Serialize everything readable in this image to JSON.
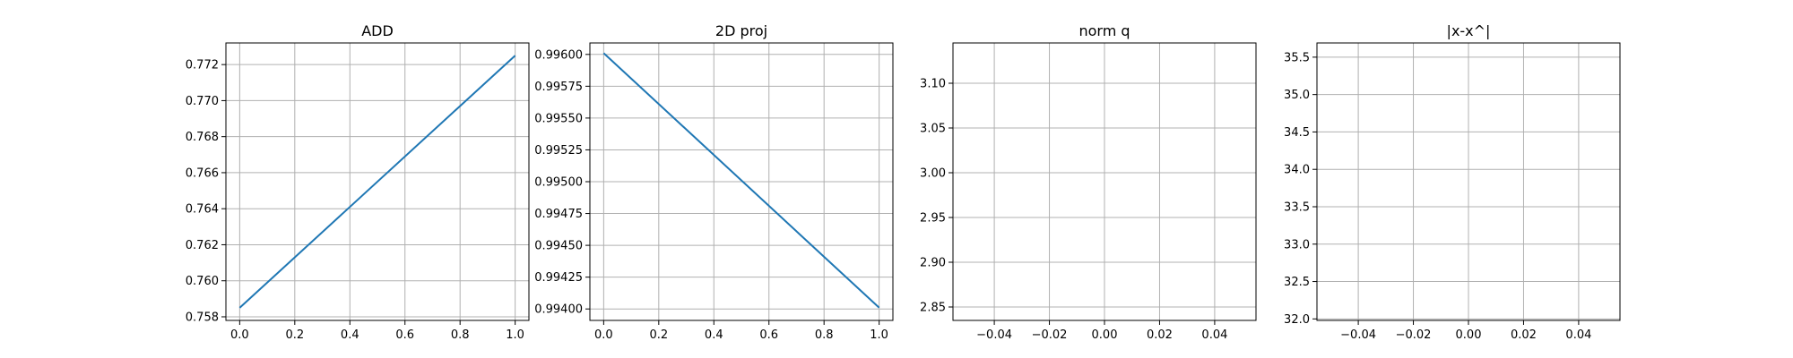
{
  "chart_data": [
    {
      "type": "line",
      "title": "ADD",
      "xlabel": "",
      "ylabel": "",
      "grid": true,
      "xlim": [
        -0.05,
        1.05
      ],
      "ylim": [
        0.7578,
        0.7732
      ],
      "x_ticks": [
        0.0,
        0.2,
        0.4,
        0.6,
        0.8,
        1.0
      ],
      "x_tick_labels": [
        "0.0",
        "0.2",
        "0.4",
        "0.6",
        "0.8",
        "1.0"
      ],
      "y_ticks": [
        0.758,
        0.76,
        0.762,
        0.764,
        0.766,
        0.768,
        0.77,
        0.772
      ],
      "y_tick_labels": [
        "0.758",
        "0.760",
        "0.762",
        "0.764",
        "0.766",
        "0.768",
        "0.770",
        "0.772"
      ],
      "series": [
        {
          "color": "#1f77b4",
          "x": [
            0,
            1
          ],
          "y": [
            0.7585,
            0.7725
          ]
        }
      ]
    },
    {
      "type": "line",
      "title": "2D proj",
      "xlabel": "",
      "ylabel": "",
      "grid": true,
      "xlim": [
        -0.05,
        1.05
      ],
      "ylim": [
        0.99391,
        0.99609
      ],
      "x_ticks": [
        0.0,
        0.2,
        0.4,
        0.6,
        0.8,
        1.0
      ],
      "x_tick_labels": [
        "0.0",
        "0.2",
        "0.4",
        "0.6",
        "0.8",
        "1.0"
      ],
      "y_ticks": [
        0.994,
        0.99425,
        0.9945,
        0.99475,
        0.995,
        0.99525,
        0.9955,
        0.99575,
        0.996
      ],
      "y_tick_labels": [
        "0.99400",
        "0.99425",
        "0.99450",
        "0.99475",
        "0.99500",
        "0.99525",
        "0.99550",
        "0.99575",
        "0.99600"
      ],
      "series": [
        {
          "color": "#1f77b4",
          "x": [
            0,
            1
          ],
          "y": [
            0.99601,
            0.99401
          ]
        }
      ]
    },
    {
      "type": "line",
      "title": "norm q",
      "xlabel": "",
      "ylabel": "",
      "grid": true,
      "xlim": [
        -0.055,
        0.055
      ],
      "ylim": [
        2.835,
        3.145
      ],
      "x_ticks": [
        -0.04,
        -0.02,
        0.0,
        0.02,
        0.04
      ],
      "x_tick_labels": [
        "−0.04",
        "−0.02",
        "0.00",
        "0.02",
        "0.04"
      ],
      "y_ticks": [
        2.85,
        2.9,
        2.95,
        3.0,
        3.05,
        3.1
      ],
      "y_tick_labels": [
        "2.85",
        "2.90",
        "2.95",
        "3.00",
        "3.05",
        "3.10"
      ],
      "series": []
    },
    {
      "type": "line",
      "title": "|x-x^|",
      "xlabel": "",
      "ylabel": "",
      "grid": true,
      "xlim": [
        -0.055,
        0.055
      ],
      "ylim": [
        31.98,
        35.69
      ],
      "x_ticks": [
        -0.04,
        -0.02,
        0.0,
        0.02,
        0.04
      ],
      "x_tick_labels": [
        "−0.04",
        "−0.02",
        "0.00",
        "0.02",
        "0.04"
      ],
      "y_ticks": [
        32.0,
        32.5,
        33.0,
        33.5,
        34.0,
        34.5,
        35.0,
        35.5
      ],
      "y_tick_labels": [
        "32.0",
        "32.5",
        "33.0",
        "33.5",
        "34.0",
        "34.5",
        "35.0",
        "35.5"
      ],
      "series": []
    }
  ]
}
